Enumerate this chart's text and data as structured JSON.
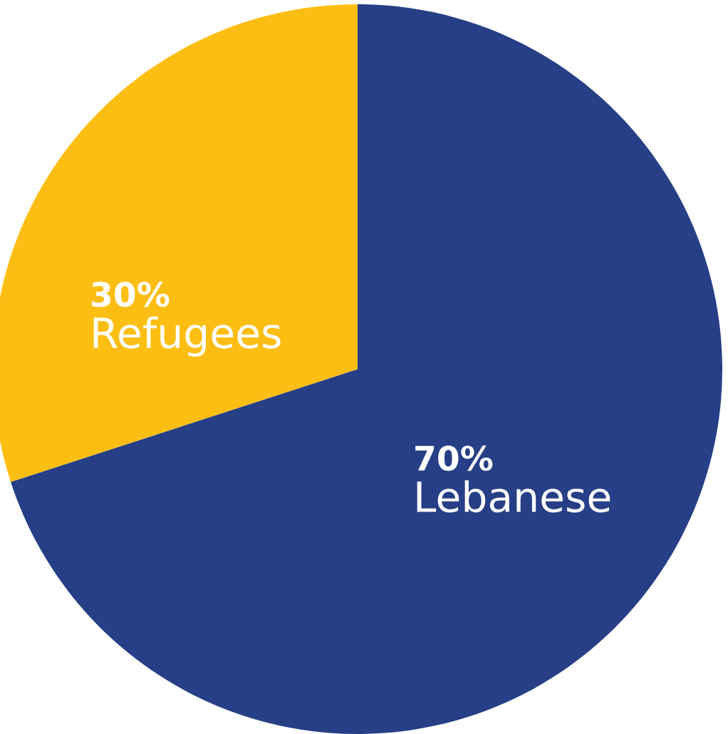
{
  "chart_data": {
    "type": "pie",
    "categories": [
      "Lebanese",
      "Refugees"
    ],
    "values": [
      70,
      30
    ],
    "colors": [
      "#263f86",
      "#fdbe14"
    ],
    "value_labels": [
      "70%",
      "30%"
    ]
  }
}
